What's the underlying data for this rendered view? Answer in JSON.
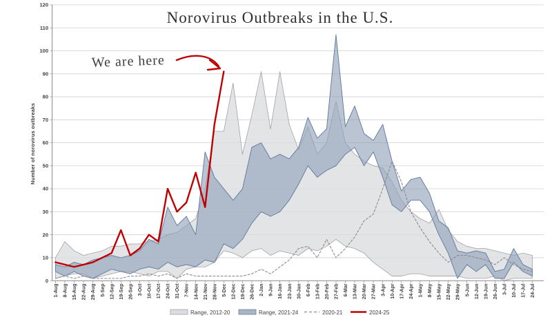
{
  "chart_data": {
    "type": "area",
    "title": "Norovirus Outbreaks in the U.S.",
    "ylabel": "Number of norovirus outbreaks",
    "xlabel": "",
    "ylim": [
      0,
      120
    ],
    "ytick_step": 10,
    "grid": "horizontal",
    "legend_position": "bottom",
    "annotation": {
      "text": "We are here",
      "points_to_week": "5-Dec",
      "points_to_value": 91,
      "color": "#c00000"
    },
    "colors": {
      "band_2012_20": "#dcdde0",
      "band_2012_20_edge": "#a0a0a8",
      "band_2021_24": "#8fa0b8",
      "band_2021_24_edge": "#66809f",
      "line_2020_21": "#8a8a92",
      "line_2024_25": "#c00000",
      "grid": "#cfcfd4",
      "axis_text": "#404040"
    },
    "categories": [
      "1-Aug",
      "8-Aug",
      "15-Aug",
      "22-Aug",
      "29-Aug",
      "5-Sep",
      "12-Sep",
      "19-Sep",
      "26-Sep",
      "3-Oct",
      "10-Oct",
      "17-Oct",
      "24-Oct",
      "31-Oct",
      "7-Nov",
      "14-Nov",
      "21-Nov",
      "28-Nov",
      "5-Dec",
      "12-Dec",
      "19-Dec",
      "26-Dec",
      "2-Jan",
      "9-Jan",
      "16-Jan",
      "23-Jan",
      "30-Jan",
      "6-Feb",
      "13-Feb",
      "20-Feb",
      "27-Feb",
      "6-Mar",
      "13-Mar",
      "20-Mar",
      "27-Mar",
      "3-Apr",
      "10-Apr",
      "17-Apr",
      "24-Apr",
      "1-May",
      "8-May",
      "15-May",
      "22-May",
      "29-May",
      "5-Jun",
      "12-Jun",
      "19-Jun",
      "26-Jun",
      "3-Jul",
      "10-Jul",
      "17-Jul",
      "24-Jul"
    ],
    "yticks": [
      0,
      10,
      20,
      30,
      40,
      50,
      60,
      70,
      80,
      90,
      100,
      110,
      120
    ],
    "series": [
      {
        "name": "Range, 2012-20",
        "kind": "band",
        "lower": [
          1,
          2,
          3,
          3,
          1,
          2,
          3,
          4,
          4,
          3,
          2,
          4,
          4,
          1,
          5,
          6,
          6,
          8,
          13,
          12,
          10,
          13,
          14,
          11,
          13,
          12,
          11,
          14,
          13,
          15,
          18,
          15,
          14,
          12,
          8,
          5,
          2,
          2,
          3,
          3,
          2,
          2,
          2,
          2,
          1,
          1,
          1,
          2,
          0,
          1,
          1,
          1
        ],
        "upper": [
          10,
          17,
          13,
          11,
          12,
          13,
          15,
          15,
          16,
          16,
          17,
          18,
          20,
          21,
          24,
          27,
          40,
          65,
          65,
          86,
          55,
          72,
          91,
          66,
          91,
          68,
          57,
          67,
          55,
          60,
          78,
          60,
          55,
          52,
          50,
          49,
          43,
          35,
          30,
          27,
          25,
          31,
          22,
          17,
          15,
          14,
          14,
          13,
          12,
          11,
          12,
          11
        ]
      },
      {
        "name": "Range, 2021-24",
        "kind": "band",
        "lower": [
          4,
          2,
          4,
          2,
          1,
          3,
          5,
          4,
          3,
          5,
          6,
          5,
          8,
          6,
          7,
          6,
          9,
          8,
          16,
          14,
          18,
          25,
          30,
          28,
          30,
          35,
          42,
          50,
          45,
          48,
          50,
          55,
          58,
          50,
          56,
          45,
          33,
          30,
          35,
          35,
          30,
          20,
          12,
          1,
          7,
          4,
          7,
          1,
          1,
          8,
          4,
          2
        ],
        "upper": [
          7,
          6,
          8,
          7,
          9,
          10,
          11,
          10,
          11,
          13,
          18,
          16,
          32,
          24,
          28,
          20,
          56,
          45,
          40,
          35,
          40,
          58,
          60,
          53,
          55,
          53,
          58,
          71,
          62,
          66,
          107,
          67,
          76,
          64,
          61,
          68,
          52,
          39,
          44,
          45,
          38,
          26,
          23,
          13,
          12,
          13,
          12,
          4,
          5,
          14,
          7,
          5
        ]
      },
      {
        "name": "2020-21",
        "kind": "line",
        "style": "dashed",
        "values": [
          1,
          2,
          1,
          2,
          1,
          1,
          1,
          1,
          2,
          2,
          3,
          2,
          3,
          1,
          3,
          2,
          2,
          2,
          2,
          2,
          2,
          3,
          5,
          3,
          6,
          9,
          14,
          15,
          10,
          18,
          10,
          14,
          19,
          26,
          29,
          40,
          52,
          43,
          30,
          23,
          17,
          12,
          8,
          11,
          11,
          10,
          9,
          7,
          10,
          7,
          5,
          4
        ]
      },
      {
        "name": "2024-25",
        "kind": "line",
        "style": "solid",
        "values": [
          8,
          7,
          6,
          7,
          8,
          10,
          12,
          22,
          11,
          14,
          20,
          17,
          40,
          30,
          34,
          47,
          32,
          68,
          91
        ]
      }
    ]
  }
}
